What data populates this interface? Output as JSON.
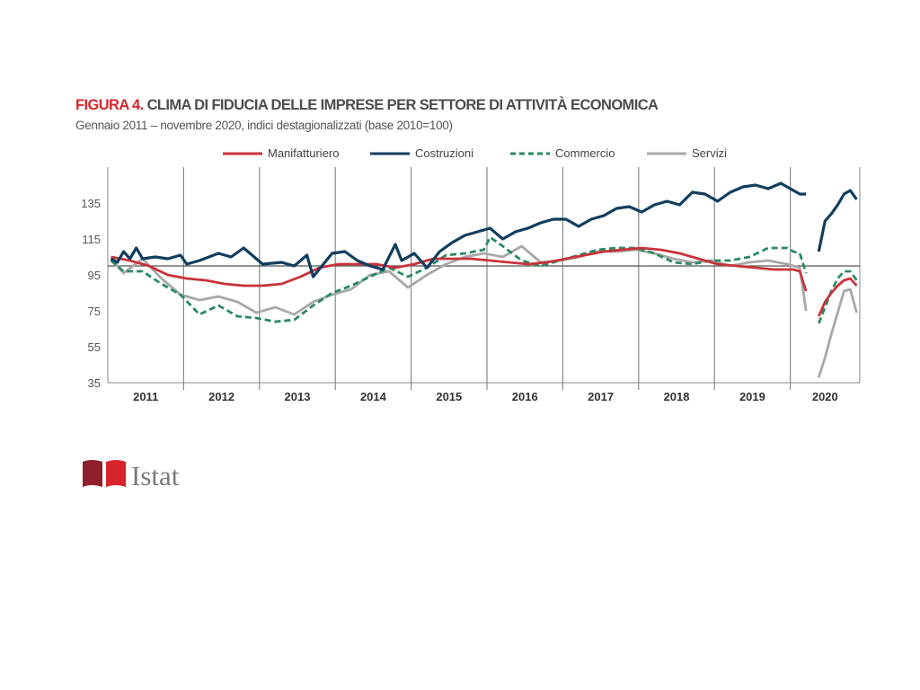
{
  "header": {
    "figure_label": "FIGURA 4.",
    "title": "CLIMA DI FIDUCIA DELLE IMPRESE PER SETTORE DI ATTIVITÀ ECONOMICA",
    "subtitle": "Gennaio 2011 – novembre  2020, indici destagionalizzati  (base 2010=100)"
  },
  "logo": {
    "text": "Istat"
  },
  "chart_data": {
    "type": "line",
    "x_range": [
      "2011-01",
      "2020-11"
    ],
    "ylim": [
      35,
      155
    ],
    "yticks": [
      35,
      55,
      75,
      95,
      115,
      135
    ],
    "reference_line": 100,
    "x_labels": [
      "2011",
      "2012",
      "2013",
      "2014",
      "2015",
      "2016",
      "2017",
      "2018",
      "2019",
      "2020"
    ],
    "legend_position": "top",
    "gap_months": [
      "2020-04"
    ],
    "series": [
      {
        "name": "Manifatturiero",
        "color": "#c8323a",
        "dash": "solid",
        "points": [
          [
            "2011-01",
            105
          ],
          [
            "2011-04",
            103
          ],
          [
            "2011-07",
            100
          ],
          [
            "2011-10",
            95
          ],
          [
            "2012-01",
            93
          ],
          [
            "2012-04",
            92
          ],
          [
            "2012-07",
            90
          ],
          [
            "2012-10",
            89
          ],
          [
            "2013-01",
            89
          ],
          [
            "2013-04",
            90
          ],
          [
            "2013-07",
            94
          ],
          [
            "2013-10",
            99
          ],
          [
            "2014-01",
            101
          ],
          [
            "2014-04",
            101
          ],
          [
            "2014-07",
            101
          ],
          [
            "2014-10",
            99
          ],
          [
            "2015-01",
            101
          ],
          [
            "2015-04",
            104
          ],
          [
            "2015-07",
            104
          ],
          [
            "2015-10",
            104
          ],
          [
            "2016-01",
            103
          ],
          [
            "2016-04",
            102
          ],
          [
            "2016-07",
            101
          ],
          [
            "2016-10",
            102
          ],
          [
            "2017-01",
            104
          ],
          [
            "2017-04",
            106
          ],
          [
            "2017-07",
            108
          ],
          [
            "2017-10",
            109
          ],
          [
            "2018-01",
            110
          ],
          [
            "2018-04",
            109
          ],
          [
            "2018-07",
            107
          ],
          [
            "2018-10",
            104
          ],
          [
            "2019-01",
            101
          ],
          [
            "2019-04",
            100
          ],
          [
            "2019-07",
            99
          ],
          [
            "2019-10",
            98
          ],
          [
            "2020-01",
            98
          ],
          [
            "2020-02",
            97
          ],
          [
            "2020-03",
            86
          ],
          [
            "2020-05",
            72
          ],
          [
            "2020-06",
            80
          ],
          [
            "2020-07",
            85
          ],
          [
            "2020-08",
            89
          ],
          [
            "2020-09",
            92
          ],
          [
            "2020-10",
            93
          ],
          [
            "2020-11",
            89
          ]
        ]
      },
      {
        "name": "Costruzioni",
        "color": "#123e5e",
        "dash": "solid",
        "points": [
          [
            "2011-01",
            104
          ],
          [
            "2011-02",
            102
          ],
          [
            "2011-03",
            108
          ],
          [
            "2011-04",
            104
          ],
          [
            "2011-05",
            110
          ],
          [
            "2011-06",
            104
          ],
          [
            "2011-08",
            105
          ],
          [
            "2011-10",
            104
          ],
          [
            "2011-12",
            106
          ],
          [
            "2012-01",
            101
          ],
          [
            "2012-03",
            103
          ],
          [
            "2012-06",
            107
          ],
          [
            "2012-08",
            105
          ],
          [
            "2012-10",
            110
          ],
          [
            "2013-01",
            101
          ],
          [
            "2013-04",
            102
          ],
          [
            "2013-06",
            100
          ],
          [
            "2013-08",
            106
          ],
          [
            "2013-09",
            94
          ],
          [
            "2013-12",
            107
          ],
          [
            "2014-02",
            108
          ],
          [
            "2014-04",
            103
          ],
          [
            "2014-06",
            100
          ],
          [
            "2014-08",
            98
          ],
          [
            "2014-10",
            112
          ],
          [
            "2014-11",
            103
          ],
          [
            "2015-01",
            107
          ],
          [
            "2015-03",
            99
          ],
          [
            "2015-05",
            108
          ],
          [
            "2015-07",
            113
          ],
          [
            "2015-09",
            117
          ],
          [
            "2015-11",
            119
          ],
          [
            "2016-01",
            121
          ],
          [
            "2016-03",
            115
          ],
          [
            "2016-05",
            119
          ],
          [
            "2016-07",
            121
          ],
          [
            "2016-09",
            124
          ],
          [
            "2016-11",
            126
          ],
          [
            "2017-01",
            126
          ],
          [
            "2017-03",
            122
          ],
          [
            "2017-05",
            126
          ],
          [
            "2017-07",
            128
          ],
          [
            "2017-09",
            132
          ],
          [
            "2017-11",
            133
          ],
          [
            "2018-01",
            130
          ],
          [
            "2018-03",
            134
          ],
          [
            "2018-05",
            136
          ],
          [
            "2018-07",
            134
          ],
          [
            "2018-09",
            141
          ],
          [
            "2018-11",
            140
          ],
          [
            "2019-01",
            136
          ],
          [
            "2019-03",
            141
          ],
          [
            "2019-05",
            144
          ],
          [
            "2019-07",
            145
          ],
          [
            "2019-09",
            143
          ],
          [
            "2019-11",
            146
          ],
          [
            "2020-01",
            142
          ],
          [
            "2020-02",
            140
          ],
          [
            "2020-03",
            140
          ],
          [
            "2020-05",
            108
          ],
          [
            "2020-06",
            125
          ],
          [
            "2020-07",
            129
          ],
          [
            "2020-08",
            134
          ],
          [
            "2020-09",
            140
          ],
          [
            "2020-10",
            142
          ],
          [
            "2020-11",
            137
          ]
        ]
      },
      {
        "name": "Commercio",
        "color": "#2a8a62",
        "dash": "dashed",
        "points": [
          [
            "2011-01",
            103
          ],
          [
            "2011-03",
            97
          ],
          [
            "2011-06",
            97
          ],
          [
            "2011-09",
            90
          ],
          [
            "2011-12",
            84
          ],
          [
            "2012-03",
            73
          ],
          [
            "2012-06",
            78
          ],
          [
            "2012-09",
            72
          ],
          [
            "2012-12",
            71
          ],
          [
            "2013-03",
            69
          ],
          [
            "2013-06",
            70
          ],
          [
            "2013-09",
            78
          ],
          [
            "2013-12",
            85
          ],
          [
            "2014-03",
            89
          ],
          [
            "2014-06",
            94
          ],
          [
            "2014-09",
            99
          ],
          [
            "2014-12",
            94
          ],
          [
            "2015-03",
            99
          ],
          [
            "2015-06",
            106
          ],
          [
            "2015-09",
            107
          ],
          [
            "2015-12",
            109
          ],
          [
            "2016-01",
            116
          ],
          [
            "2016-03",
            111
          ],
          [
            "2016-06",
            103
          ],
          [
            "2016-09",
            100
          ],
          [
            "2016-12",
            103
          ],
          [
            "2017-03",
            106
          ],
          [
            "2017-06",
            109
          ],
          [
            "2017-09",
            110
          ],
          [
            "2017-12",
            110
          ],
          [
            "2018-03",
            107
          ],
          [
            "2018-06",
            102
          ],
          [
            "2018-09",
            101
          ],
          [
            "2018-12",
            103
          ],
          [
            "2019-03",
            103
          ],
          [
            "2019-06",
            105
          ],
          [
            "2019-09",
            110
          ],
          [
            "2019-12",
            110
          ],
          [
            "2020-01",
            108
          ],
          [
            "2020-02",
            107
          ],
          [
            "2020-03",
            96
          ],
          [
            "2020-05",
            68
          ],
          [
            "2020-06",
            77
          ],
          [
            "2020-07",
            86
          ],
          [
            "2020-08",
            93
          ],
          [
            "2020-09",
            97
          ],
          [
            "2020-10",
            97
          ],
          [
            "2020-11",
            92
          ]
        ]
      },
      {
        "name": "Servizi",
        "color": "#a8a8a8",
        "dash": "solid",
        "points": [
          [
            "2011-01",
            104
          ],
          [
            "2011-03",
            96
          ],
          [
            "2011-06",
            104
          ],
          [
            "2011-09",
            93
          ],
          [
            "2011-12",
            84
          ],
          [
            "2012-03",
            81
          ],
          [
            "2012-06",
            83
          ],
          [
            "2012-09",
            80
          ],
          [
            "2012-12",
            74
          ],
          [
            "2013-03",
            77
          ],
          [
            "2013-06",
            73
          ],
          [
            "2013-09",
            80
          ],
          [
            "2013-12",
            84
          ],
          [
            "2014-03",
            87
          ],
          [
            "2014-06",
            95
          ],
          [
            "2014-09",
            97
          ],
          [
            "2014-12",
            88
          ],
          [
            "2015-03",
            95
          ],
          [
            "2015-06",
            101
          ],
          [
            "2015-09",
            105
          ],
          [
            "2015-12",
            107
          ],
          [
            "2016-03",
            105
          ],
          [
            "2016-06",
            111
          ],
          [
            "2016-09",
            102
          ],
          [
            "2016-12",
            103
          ],
          [
            "2017-03",
            105
          ],
          [
            "2017-06",
            108
          ],
          [
            "2017-09",
            108
          ],
          [
            "2017-12",
            109
          ],
          [
            "2018-03",
            107
          ],
          [
            "2018-06",
            104
          ],
          [
            "2018-09",
            102
          ],
          [
            "2018-12",
            103
          ],
          [
            "2019-03",
            100
          ],
          [
            "2019-06",
            102
          ],
          [
            "2019-09",
            103
          ],
          [
            "2019-12",
            101
          ],
          [
            "2020-01",
            100
          ],
          [
            "2020-02",
            99
          ],
          [
            "2020-03",
            75
          ],
          [
            "2020-05",
            38
          ],
          [
            "2020-06",
            49
          ],
          [
            "2020-07",
            62
          ],
          [
            "2020-08",
            74
          ],
          [
            "2020-09",
            86
          ],
          [
            "2020-10",
            87
          ],
          [
            "2020-11",
            74
          ]
        ]
      }
    ]
  }
}
